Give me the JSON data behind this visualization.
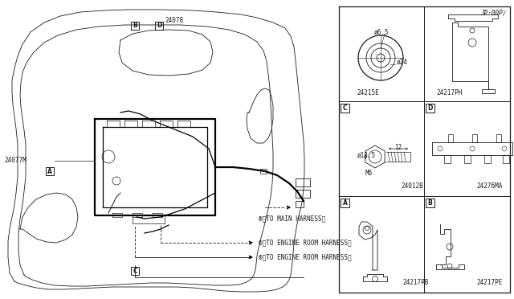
{
  "bg_color": "#ffffff",
  "line_color": "#1a1a1a",
  "thick_color": "#000000",
  "diagram_title": "JP·00P∕",
  "part_numbers": {
    "main": "24077M",
    "sub": "24078",
    "A_part": "24217PB",
    "B_part": "24217PE",
    "C_part": "24012B",
    "D_part": "24276MA",
    "E_part": "24215E",
    "F_part": "24217PH"
  },
  "labels": {
    "a_conn": "®＜TO ENGINE ROOM HARNESS＞",
    "b_conn": "®＜TO ENGINE ROOM HARNESS＞",
    "c_conn": "®＜TO MAIN HARNESS＞",
    "c_label": "M6",
    "c_dim1": "ø13.5",
    "c_dim2": "12",
    "e_dim1": "ø24",
    "e_dim2": "ø6.5"
  },
  "figsize": [
    6.4,
    3.72
  ],
  "dpi": 100
}
